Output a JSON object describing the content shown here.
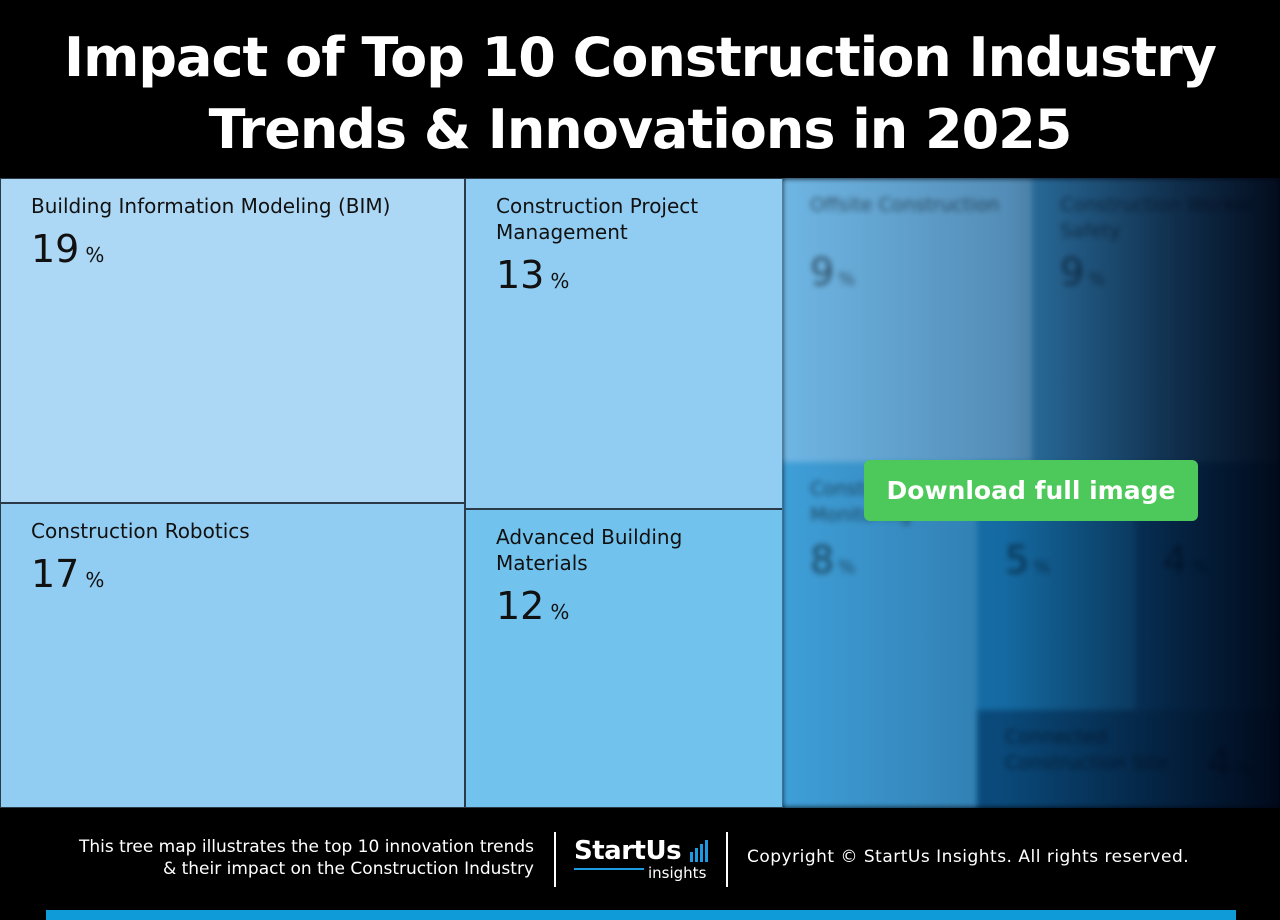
{
  "header": {
    "title_line1": "Impact of Top 10 Construction Industry",
    "title_line2": "Trends & Innovations in 2025"
  },
  "colors": {
    "tile_bim": "#acd8f5",
    "tile_robotics": "#91cdf2",
    "tile_project_mgmt": "#91cdf2",
    "tile_materials": "#72c2ee",
    "download_button": "#4cc95a",
    "accent_bar": "#0f9bd8"
  },
  "chart_data": {
    "type": "treemap",
    "title": "Impact of Top 10 Construction Industry Trends & Innovations in 2025",
    "unit": "%",
    "items": [
      {
        "name": "Building Information Modeling (BIM)",
        "value": 19
      },
      {
        "name": "Construction Robotics",
        "value": 17
      },
      {
        "name": "Construction Project Management",
        "value": 13
      },
      {
        "name": "Advanced Building Materials",
        "value": 12
      },
      {
        "name": "Offsite Construction",
        "value": 9
      },
      {
        "name": "Construction Worker Safety",
        "value": 9
      },
      {
        "name": "Construction Monitoring",
        "value": 8
      },
      {
        "name": "",
        "value": 5
      },
      {
        "name": "",
        "value": 4
      },
      {
        "name": "Connected Construction Site",
        "value": 4
      }
    ]
  },
  "download_label": "Download full image",
  "footer": {
    "desc_line1": "This tree map illustrates the top 10 innovation trends",
    "desc_line2": "& their impact on the Construction Industry",
    "logo_main": "StartUs",
    "logo_sub": "insights",
    "copyright": "Copyright © StartUs Insights. All rights reserved."
  }
}
